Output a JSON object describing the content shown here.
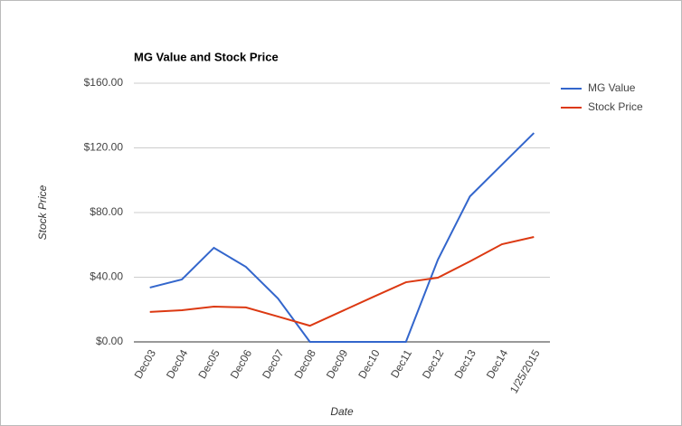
{
  "chart_data": {
    "type": "line",
    "title": "MG Value and Stock Price",
    "x_label": "Date",
    "y_label": "Stock Price",
    "categories": [
      "Dec03",
      "Dec04",
      "Dec05",
      "Dec06",
      "Dec07",
      "Dec08",
      "Dec09",
      "Dec10",
      "Dec11",
      "Dec12",
      "Dec13",
      "Dec14",
      "1/25/2015"
    ],
    "series": [
      {
        "name": "MG Value",
        "color": "#3366cc",
        "values": [
          33.6,
          38.6,
          58.2,
          46.4,
          26.9,
          0,
          0,
          0,
          0,
          50.9,
          90,
          109.6,
          129.2
        ]
      },
      {
        "name": "Stock Price",
        "color": "#dc3912",
        "values": [
          18.5,
          19.6,
          21.8,
          21.3,
          15.7,
          10,
          19,
          28,
          36.9,
          39.7,
          49.8,
          60.4,
          64.9
        ]
      }
    ],
    "ylim": [
      0,
      160
    ],
    "yticks": [
      {
        "value": 0,
        "label": "$0.00"
      },
      {
        "value": 40,
        "label": "$40.00"
      },
      {
        "value": 80,
        "label": "$80.00"
      },
      {
        "value": 120,
        "label": "$120.00"
      },
      {
        "value": 160,
        "label": "$160.00"
      }
    ],
    "grid": true,
    "legend": "right"
  }
}
